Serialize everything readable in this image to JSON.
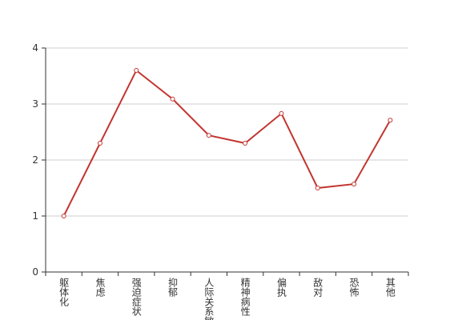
{
  "chart_data": {
    "type": "line",
    "categories": [
      "躯体化",
      "焦虑",
      "强迫症状",
      "抑郁",
      "人际关系敏感",
      "精神病性",
      "偏执",
      "敌对",
      "恐怖",
      "其他"
    ],
    "values": [
      1.0,
      2.3,
      3.6,
      3.09,
      2.44,
      2.3,
      2.83,
      1.5,
      1.57,
      2.71
    ],
    "color": "#c23531",
    "ylim": [
      0,
      4
    ],
    "yticks": [
      0,
      1,
      2,
      3,
      4
    ],
    "grid": true
  }
}
